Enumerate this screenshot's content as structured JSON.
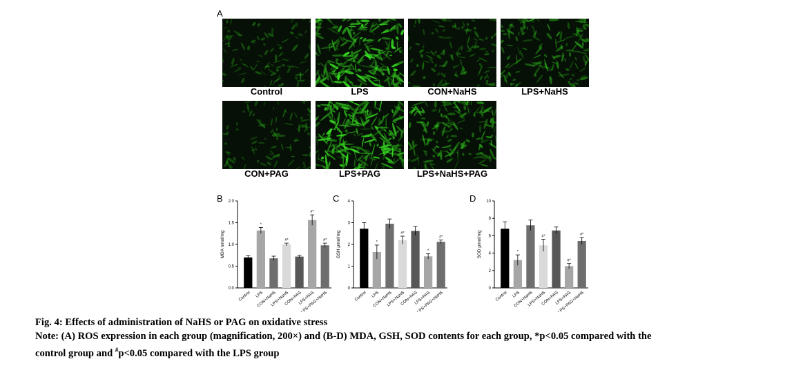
{
  "panel_A": {
    "letter": "A",
    "images": [
      {
        "label": "Control",
        "intensity": 0.3
      },
      {
        "label": "LPS",
        "intensity": 0.95
      },
      {
        "label": "CON+NaHS",
        "intensity": 0.4
      },
      {
        "label": "LPS+NaHS",
        "intensity": 0.55
      },
      {
        "label": "CON+PAG",
        "intensity": 0.3
      },
      {
        "label": "LPS+PAG",
        "intensity": 1.0
      },
      {
        "label": "LPS+NaHS+PAG",
        "intensity": 0.65
      }
    ]
  },
  "chart_data": [
    {
      "type": "bar",
      "letter": "B",
      "ylabel": "MDA nmol/mg",
      "ylim": [
        0,
        2.0
      ],
      "yticks": [
        "0.0",
        "0.5",
        "1.0",
        "1.5",
        "2.0"
      ],
      "categories": [
        "Control",
        "LPS",
        "CON+NaHS",
        "LPS+NaHS",
        "CON+PAG",
        "LPS+PAG",
        "LPS+PAG+NaHS"
      ],
      "values": [
        0.7,
        1.32,
        0.68,
        1.0,
        0.72,
        1.56,
        0.98
      ],
      "errors": [
        0.04,
        0.07,
        0.05,
        0.03,
        0.03,
        0.12,
        0.05
      ],
      "annotations": [
        "",
        "*",
        "",
        "#*",
        "",
        "#*",
        "#*"
      ],
      "colors": [
        "#000000",
        "#a6a6a6",
        "#6e6e6e",
        "#d9d9d9",
        "#575757",
        "#a6a6a6",
        "#6e6e6e"
      ]
    },
    {
      "type": "bar",
      "letter": "C",
      "ylabel": "GSH μmol/mg",
      "ylim": [
        0,
        4
      ],
      "yticks": [
        "0",
        "1",
        "2",
        "3",
        "4"
      ],
      "categories": [
        "Control",
        "LPS",
        "CON+NaHS",
        "LPS+NaHS",
        "CON+PAG",
        "LPS+PAG",
        "LPS+PAG+NaHS"
      ],
      "values": [
        2.72,
        1.65,
        2.95,
        2.2,
        2.62,
        1.45,
        2.12
      ],
      "errors": [
        0.28,
        0.32,
        0.22,
        0.18,
        0.2,
        0.12,
        0.08
      ],
      "annotations": [
        "",
        "*",
        "",
        "#*",
        "",
        "*",
        "#*"
      ],
      "colors": [
        "#000000",
        "#a6a6a6",
        "#6e6e6e",
        "#d9d9d9",
        "#575757",
        "#a6a6a6",
        "#6e6e6e"
      ]
    },
    {
      "type": "bar",
      "letter": "D",
      "ylabel": "SOD μmol/mg",
      "ylim": [
        0,
        10
      ],
      "yticks": [
        "0",
        "2",
        "4",
        "6",
        "8",
        "10"
      ],
      "categories": [
        "Control",
        "LPS",
        "CON+NaHS",
        "LPS+NaHS",
        "CON+PAG",
        "LPS+PAG",
        "LPS+PAG+NaHS"
      ],
      "values": [
        6.8,
        3.2,
        7.2,
        4.9,
        6.6,
        2.5,
        5.4
      ],
      "errors": [
        0.8,
        0.6,
        0.6,
        0.7,
        0.4,
        0.3,
        0.4
      ],
      "annotations": [
        "",
        "*",
        "",
        "#*",
        "",
        "#*",
        "#*"
      ],
      "colors": [
        "#000000",
        "#a6a6a6",
        "#6e6e6e",
        "#d9d9d9",
        "#575757",
        "#a6a6a6",
        "#6e6e6e"
      ]
    }
  ],
  "caption": {
    "title": "Fig. 4: Effects of administration of NaHS or PAG on oxidative stress",
    "note_line1": "Note: (A) ROS expression in each group (magnification, 200×) and (B-D) MDA, GSH, SOD contents for each group, *p<0.05 compared with the",
    "note_line2_a": "control group and ",
    "note_line2_sup": "#",
    "note_line2_b": "p<0.05 compared with the LPS group"
  }
}
